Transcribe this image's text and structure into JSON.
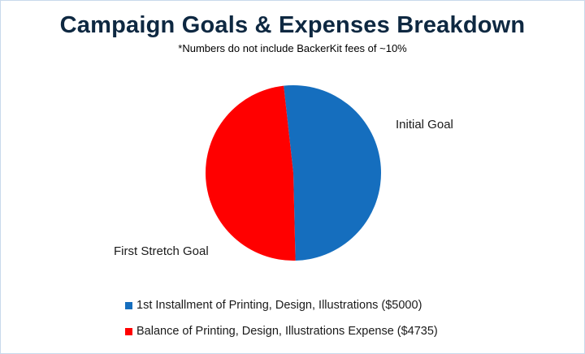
{
  "chart_data": {
    "type": "pie",
    "title": "Campaign Goals & Expenses Breakdown",
    "subtitle": "*Numbers do not include BackerKit fees of ~10%",
    "slices": [
      {
        "legend": "1st Installment of Printing, Design, Illustrations ($5000)",
        "label": "Initial Goal",
        "value": 5000,
        "color": "#156ebe"
      },
      {
        "legend": "Balance of Printing, Design, Illustrations Expense ($4735)",
        "label": "First Stretch Goal",
        "value": 4735,
        "color": "#ff0000"
      }
    ],
    "legend_position": "bottom-left"
  }
}
